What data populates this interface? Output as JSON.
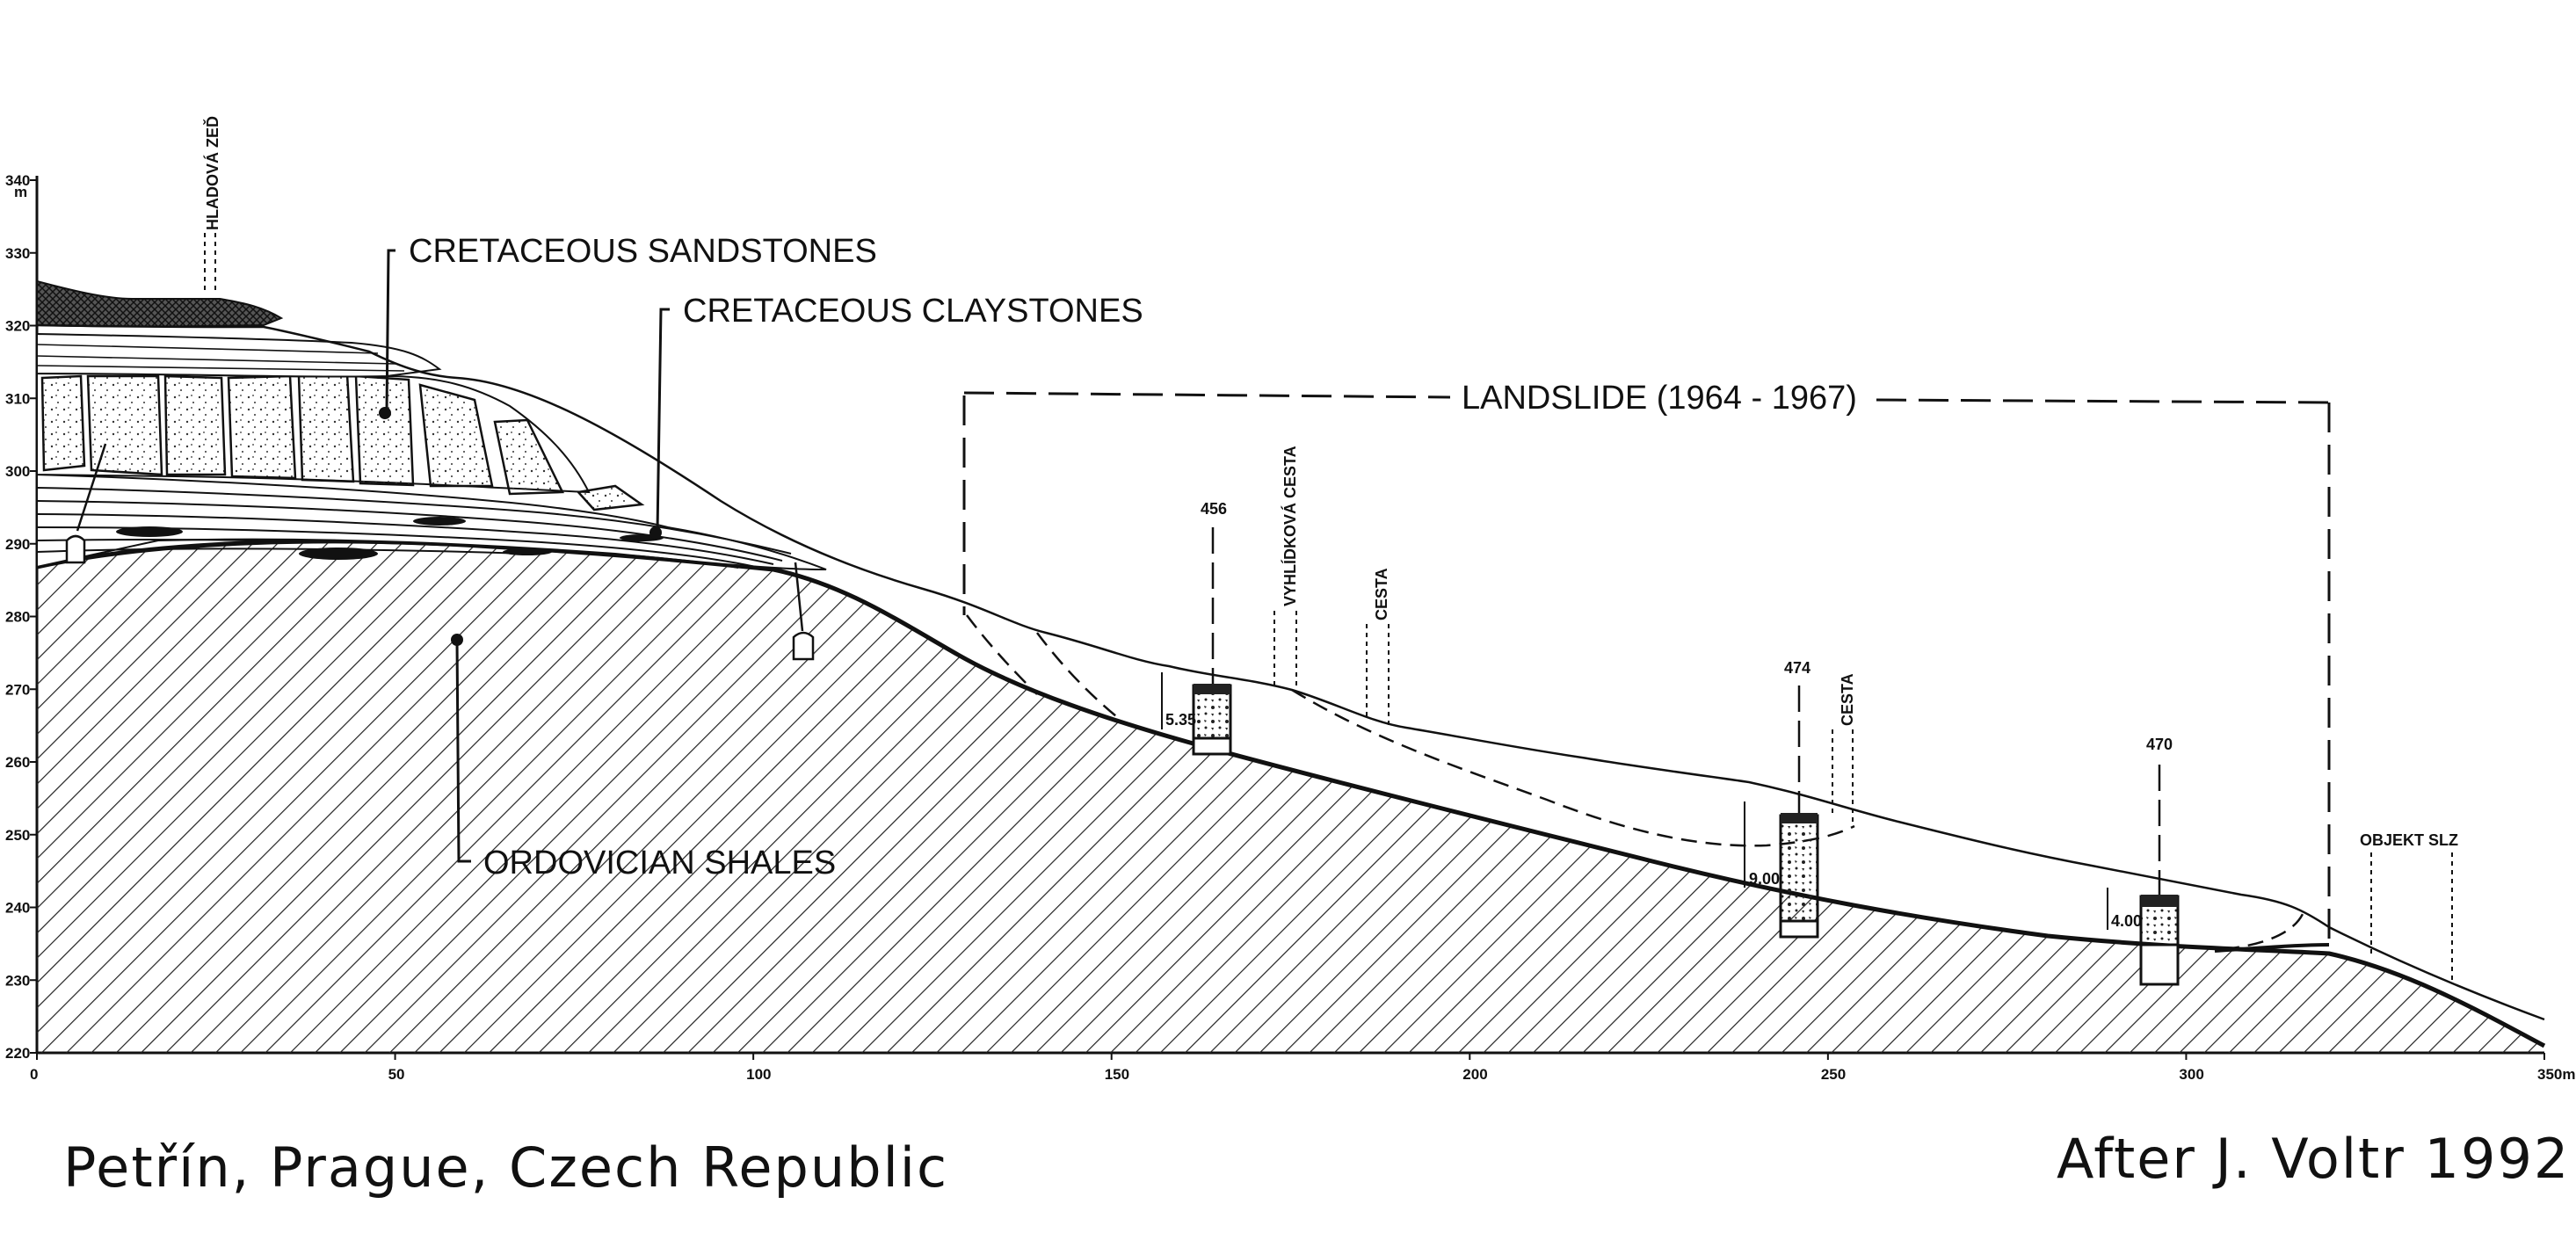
{
  "labels": {
    "sandstones": "CRETACEOUS SANDSTONES",
    "claystones": "CRETACEOUS CLAYSTONES",
    "shales": "ORDOVICIAN SHALES",
    "landslide": "LANDSLIDE (1964 - 1967)"
  },
  "small_labels": {
    "hladova_zed": "HLADOVÁ ZEĎ",
    "vyhlidkova_cesta": "VYHLÍDKOVÁ CESTA",
    "cesta_1": "CESTA",
    "cesta_2": "CESTA",
    "objekt_slz": "OBJEKT SLZ"
  },
  "boreholes": [
    {
      "id": "456",
      "depth": "5.35"
    },
    {
      "id": "474",
      "depth": "9.00"
    },
    {
      "id": "470",
      "depth": "4.00"
    }
  ],
  "axes": {
    "y_unit": "m",
    "y_ticks": [
      "340",
      "330",
      "320",
      "310",
      "300",
      "290",
      "280",
      "270",
      "260",
      "250",
      "240",
      "230",
      "220"
    ],
    "x_ticks": [
      "0",
      "50",
      "100",
      "150",
      "200",
      "250",
      "300",
      "350m"
    ]
  },
  "footer": {
    "location": "Petřín, Prague, Czech Republic",
    "credit": "After J. Voltr 1992"
  },
  "colors": {
    "ink": "#111111",
    "paper": "#ffffff"
  }
}
